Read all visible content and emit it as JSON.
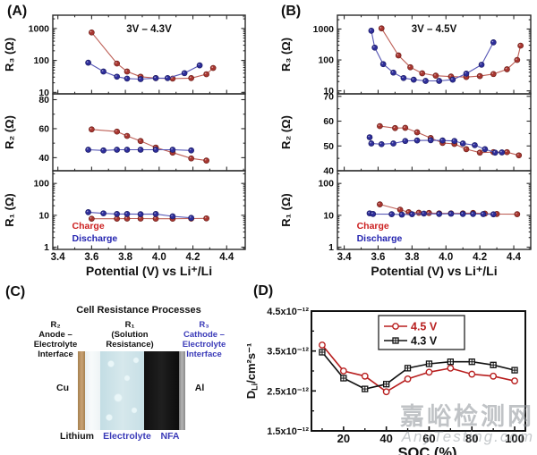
{
  "panels": {
    "a_label": "(A)",
    "b_label": "(B)",
    "c_label": "(C)",
    "d_label": "(D)"
  },
  "colors": {
    "charge_red": "#a83630",
    "charge_line": "#bd5e55",
    "charge_text": "#cc2020",
    "discharge_blue": "#2e2e9a",
    "discharge_line": "#5555b5",
    "discharge_text": "#2525b0",
    "axis": "#2b2b2b",
    "d_red": "#b81f1f",
    "d_black": "#111111",
    "diagram_blue": "#3a3ab8"
  },
  "chart_data": [
    {
      "id": "A",
      "type": "line",
      "title": "3V – 4.3V",
      "xlabel": "Potential (V) vs Li⁺/Li",
      "xlim": [
        3.37,
        4.51
      ],
      "xticks": [
        3.4,
        3.6,
        3.8,
        4.0,
        4.2,
        4.4
      ],
      "xminor": [
        3.4,
        4.5,
        0.1
      ],
      "subplots": [
        {
          "ylabel": "R₃ (Ω)",
          "yscale": "log",
          "ylim": [
            9,
            2600
          ],
          "yticks": [
            10,
            100,
            1000
          ],
          "series": [
            {
              "name": "Charge",
              "points": [
                [
                  3.6,
                  750
                ],
                [
                  3.75,
                  80
                ],
                [
                  3.81,
                  45
                ],
                [
                  3.89,
                  31
                ],
                [
                  3.98,
                  28
                ],
                [
                  4.08,
                  27
                ],
                [
                  4.19,
                  28
                ],
                [
                  4.28,
                  37
                ],
                [
                  4.32,
                  58
                ]
              ]
            },
            {
              "name": "Discharge",
              "points": [
                [
                  3.58,
                  85
                ],
                [
                  3.67,
                  45
                ],
                [
                  3.75,
                  31
                ],
                [
                  3.81,
                  27
                ],
                [
                  3.89,
                  26
                ],
                [
                  3.98,
                  28
                ],
                [
                  4.05,
                  28
                ],
                [
                  4.15,
                  40
                ],
                [
                  4.24,
                  70
                ]
              ]
            }
          ]
        },
        {
          "ylabel": "R₂ (Ω)",
          "yscale": "linear",
          "ylim": [
            31,
            84
          ],
          "yticks": [
            40,
            60,
            80
          ],
          "yminor": [
            50,
            70
          ],
          "series": [
            {
              "name": "Charge",
              "points": [
                [
                  3.6,
                  59.5
                ],
                [
                  3.75,
                  58
                ],
                [
                  3.81,
                  55
                ],
                [
                  3.89,
                  51.5
                ],
                [
                  3.98,
                  47
                ],
                [
                  4.08,
                  43.5
                ],
                [
                  4.19,
                  39.5
                ],
                [
                  4.28,
                  38
                ]
              ]
            },
            {
              "name": "Discharge",
              "points": [
                [
                  3.58,
                  45.5
                ],
                [
                  3.67,
                  45
                ],
                [
                  3.75,
                  45.5
                ],
                [
                  3.81,
                  45.5
                ],
                [
                  3.89,
                  45.5
                ],
                [
                  3.98,
                  45.5
                ],
                [
                  4.08,
                  45.5
                ],
                [
                  4.19,
                  45
                ]
              ]
            }
          ]
        },
        {
          "ylabel": "R₁ (Ω)",
          "yscale": "log",
          "ylim": [
            0.85,
            250
          ],
          "yticks": [
            1,
            10,
            100
          ],
          "annotations": [
            {
              "text": "Charge",
              "color": "#cc2020",
              "fx": 0.1,
              "fy": 0.74
            },
            {
              "text": "Discharge",
              "color": "#2525b0",
              "fx": 0.1,
              "fy": 0.9
            }
          ],
          "series": [
            {
              "name": "Charge",
              "points": [
                [
                  3.6,
                  7.8
                ],
                [
                  3.75,
                  7.8
                ],
                [
                  3.81,
                  7.9
                ],
                [
                  3.89,
                  7.9
                ],
                [
                  3.98,
                  7.8
                ],
                [
                  4.08,
                  7.8
                ],
                [
                  4.19,
                  7.9
                ],
                [
                  4.28,
                  8.0
                ]
              ]
            },
            {
              "name": "Discharge",
              "points": [
                [
                  3.58,
                  12.5
                ],
                [
                  3.67,
                  11.5
                ],
                [
                  3.75,
                  11
                ],
                [
                  3.81,
                  11
                ],
                [
                  3.89,
                  10.8
                ],
                [
                  3.98,
                  11
                ],
                [
                  4.08,
                  9.3
                ],
                [
                  4.19,
                  8.3
                ]
              ]
            }
          ]
        }
      ]
    },
    {
      "id": "B",
      "type": "line",
      "title": "3V – 4.5V",
      "xlabel": "Potential (V) vs Li⁺/Li",
      "xlim": [
        3.36,
        4.5
      ],
      "xticks": [
        3.4,
        3.6,
        3.8,
        4.0,
        4.2,
        4.4
      ],
      "xminor": [
        3.4,
        4.5,
        0.1
      ],
      "subplots": [
        {
          "ylabel": "R₃ (Ω)",
          "yscale": "log",
          "ylim": [
            8,
            2800
          ],
          "yticks": [
            10,
            100,
            1000
          ],
          "series": [
            {
              "name": "Charge",
              "points": [
                [
                  3.62,
                  1050
                ],
                [
                  3.72,
                  140
                ],
                [
                  3.79,
                  58
                ],
                [
                  3.86,
                  37
                ],
                [
                  3.94,
                  31
                ],
                [
                  4.03,
                  29
                ],
                [
                  4.12,
                  28
                ],
                [
                  4.2,
                  30
                ],
                [
                  4.28,
                  35
                ],
                [
                  4.36,
                  50
                ],
                [
                  4.42,
                  100
                ],
                [
                  4.44,
                  290
                ]
              ]
            },
            {
              "name": "Discharge",
              "points": [
                [
                  3.56,
                  880
                ],
                [
                  3.58,
                  250
                ],
                [
                  3.63,
                  73
                ],
                [
                  3.69,
                  39
                ],
                [
                  3.75,
                  26
                ],
                [
                  3.81,
                  23
                ],
                [
                  3.88,
                  21
                ],
                [
                  3.96,
                  21
                ],
                [
                  4.04,
                  23
                ],
                [
                  4.12,
                  36
                ],
                [
                  4.21,
                  70
                ],
                [
                  4.28,
                  370
                ]
              ]
            }
          ]
        },
        {
          "ylabel": "R₂ (Ω)",
          "yscale": "linear",
          "ylim": [
            40,
            71
          ],
          "yticks": [
            40,
            50,
            60,
            70
          ],
          "yminor": [
            45,
            55,
            65
          ],
          "series": [
            {
              "name": "Charge",
              "points": [
                [
                  3.61,
                  58
                ],
                [
                  3.7,
                  57.2
                ],
                [
                  3.76,
                  57.3
                ],
                [
                  3.83,
                  55.5
                ],
                [
                  3.91,
                  53.2
                ],
                [
                  3.98,
                  51.2
                ],
                [
                  4.05,
                  50.8
                ],
                [
                  4.12,
                  48.7
                ],
                [
                  4.2,
                  47.3
                ],
                [
                  4.28,
                  47.5
                ],
                [
                  4.36,
                  47.5
                ],
                [
                  4.43,
                  46.2
                ]
              ]
            },
            {
              "name": "Discharge",
              "points": [
                [
                  3.55,
                  53.5
                ],
                [
                  3.56,
                  51
                ],
                [
                  3.62,
                  50.7
                ],
                [
                  3.69,
                  51
                ],
                [
                  3.76,
                  52
                ],
                [
                  3.83,
                  52.2
                ],
                [
                  3.91,
                  52.3
                ],
                [
                  3.98,
                  52.2
                ],
                [
                  4.05,
                  52
                ],
                [
                  4.1,
                  51
                ],
                [
                  4.17,
                  50.3
                ],
                [
                  4.23,
                  48.7
                ],
                [
                  4.29,
                  47.3
                ],
                [
                  4.33,
                  47.4
                ]
              ]
            }
          ]
        },
        {
          "ylabel": "R₁ (Ω)",
          "yscale": "log",
          "ylim": [
            0.85,
            250
          ],
          "yticks": [
            1,
            10,
            100
          ],
          "annotations": [
            {
              "text": "Charge",
              "color": "#cc2020",
              "fx": 0.1,
              "fy": 0.74
            },
            {
              "text": "Discharge",
              "color": "#2525b0",
              "fx": 0.1,
              "fy": 0.9
            }
          ],
          "series": [
            {
              "name": "Charge",
              "points": [
                [
                  3.61,
                  22
                ],
                [
                  3.73,
                  15
                ],
                [
                  3.78,
                  12.5
                ],
                [
                  3.84,
                  12
                ],
                [
                  3.9,
                  11.8
                ],
                [
                  3.96,
                  11.5
                ],
                [
                  4.03,
                  11.5
                ],
                [
                  4.1,
                  11.5
                ],
                [
                  4.16,
                  11.8
                ],
                [
                  4.23,
                  11.3
                ],
                [
                  4.3,
                  11
                ],
                [
                  4.42,
                  10.8
                ]
              ]
            },
            {
              "name": "Discharge",
              "points": [
                [
                  3.55,
                  11.5
                ],
                [
                  3.57,
                  11
                ],
                [
                  3.68,
                  10.8
                ],
                [
                  3.74,
                  10.5
                ],
                [
                  3.8,
                  10.8
                ],
                [
                  3.87,
                  11.3
                ],
                [
                  3.96,
                  11
                ],
                [
                  4.03,
                  11.2
                ],
                [
                  4.1,
                  11
                ],
                [
                  4.16,
                  11
                ],
                [
                  4.22,
                  10.9
                ],
                [
                  4.28,
                  10.7
                ]
              ]
            }
          ]
        }
      ]
    },
    {
      "id": "D",
      "type": "line",
      "xlabel": "SOC (%)",
      "ylabel_main": "D",
      "ylabel_sub": "Li",
      "ylabel_rest": "/cm²s⁻¹",
      "unit_scale": "1e-12",
      "xlim": [
        5,
        105
      ],
      "ylim": [
        1.5,
        4.5
      ],
      "xticks": [
        20,
        40,
        60,
        80,
        100
      ],
      "xminor": [
        10,
        30,
        50,
        70,
        90
      ],
      "yticks": [
        4.5,
        3.5,
        2.5,
        1.5
      ],
      "ytick_labels": [
        "4.5x10⁻¹²",
        "3.5x10⁻¹²",
        "2.5x10⁻¹²",
        "1.5x10⁻¹²"
      ],
      "yminor": [
        2.0,
        3.0,
        4.0
      ],
      "x": [
        10,
        20,
        30,
        40,
        50,
        60,
        70,
        80,
        90,
        100
      ],
      "series": [
        {
          "name": "4.5 V",
          "color": "#b81f1f",
          "marker": "open-circle",
          "values": [
            3.65,
            3.0,
            2.87,
            2.48,
            2.8,
            2.97,
            3.07,
            2.92,
            2.87,
            2.75
          ]
        },
        {
          "name": "4.3 V",
          "color": "#111111",
          "marker": "square-cross",
          "values": [
            3.47,
            2.82,
            2.55,
            2.67,
            3.07,
            3.18,
            3.23,
            3.23,
            3.15,
            3.02
          ]
        }
      ],
      "legend_position": "top-center"
    }
  ],
  "panel_c": {
    "title": "Cell Resistance Processes",
    "r2_label": "R₂\nAnode –\nElectrolyte\nInterface",
    "r1_label": "R₁\n(Solution\nResistance)",
    "r3_label": "R₃\nCathode –\nElectrolyte\nInterface",
    "cu": "Cu",
    "al": "Al",
    "lithium": "Lithium",
    "electrolyte": "Electrolyte",
    "nfa": "NFA"
  },
  "watermark": {
    "text": "嘉峪检测网",
    "site": "AnyTesting.com"
  }
}
